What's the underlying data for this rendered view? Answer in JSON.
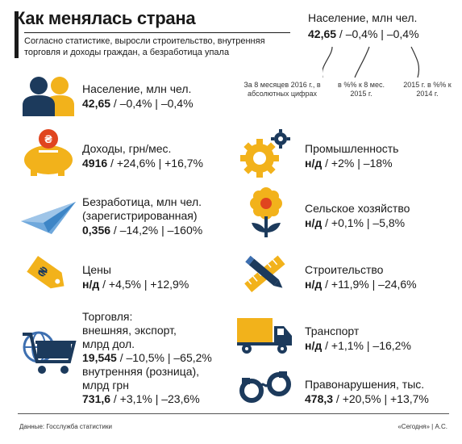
{
  "header": {
    "title": "Как менялась страна",
    "subtitle": "Согласно статистике, выросли строительство, внутренняя торговля и доходы граждан, а безработица упала"
  },
  "legend": {
    "title": "Население, млн чел.",
    "value_main": "42,65",
    "value_rest": " / –0,4% | –0,4%",
    "note1": "За 8 месяцев 2016 г., в абсолютных цифрах",
    "note2": "в %% к 8 мес. 2015 г.",
    "note3": "2015 г. в %% к 2014 г."
  },
  "left": [
    {
      "label": "Население, млн чел.",
      "main": "42,65",
      "rest": " / –0,4% | –0,4%"
    },
    {
      "label": "Доходы, грн/мес.",
      "main": "4916",
      "rest": " / +24,6% | +16,7%"
    },
    {
      "label": "Безработица, млн чел.",
      "label2": "(зарегистрированная)",
      "main": "0,356",
      "rest": " / –14,2% | –160%"
    },
    {
      "label": "Цены",
      "main": "н/д",
      "rest": " / +4,5% | +12,9%"
    },
    {
      "label": "Торговля:",
      "label2": "внешняя, экспорт,",
      "label3": "млрд дол.",
      "main": "19,545",
      "rest": " / –10,5% | –65,2%",
      "label4": "внутренняя (розница),",
      "label5": "млрд грн",
      "main2": "731,6",
      "rest2": " / +3,1% | –23,6%"
    }
  ],
  "right": [
    {
      "label": "Промышленность",
      "main": "н/д",
      "rest": " / +2% | –18%"
    },
    {
      "label": "Сельское хозяйство",
      "main": "н/д",
      "rest": " / +0,1% | –5,8%"
    },
    {
      "label": "Строительство",
      "main": "н/д",
      "rest": " / +11,9% | –24,6%"
    },
    {
      "label": "Транспорт",
      "main": "н/д",
      "rest": " / +1,1% | –16,2%"
    },
    {
      "label": "Правонарушения, тыс.",
      "main": "478,3",
      "rest": " / +20,5% | +13,7%"
    }
  ],
  "footer": {
    "source": "Данные: Госслужба статистики",
    "credit": "«Сегодня» | А.С."
  },
  "colors": {
    "accent": "#f2b21b",
    "dark": "#1c3a5c",
    "blue": "#3d6fb0"
  }
}
